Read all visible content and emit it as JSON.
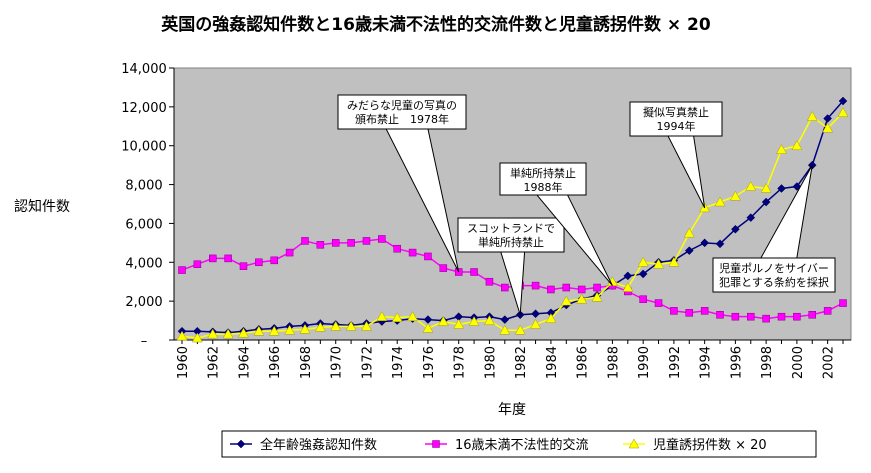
{
  "chart_data": {
    "type": "line",
    "title": "英国の強姦認知件数と16歳未満不法性的交流件数と児童誘拐件数 × 20",
    "xlabel": "年度",
    "ylabel": "認知件数",
    "ylim": [
      0,
      14000
    ],
    "yticks": [
      "–",
      "2,000",
      "4,000",
      "6,000",
      "8,000",
      "10,000",
      "12,000",
      "14,000"
    ],
    "ytick_values": [
      0,
      2000,
      4000,
      6000,
      8000,
      10000,
      12000,
      14000
    ],
    "xticks": [
      1960,
      1962,
      1964,
      1966,
      1968,
      1970,
      1972,
      1974,
      1976,
      1978,
      1980,
      1982,
      1984,
      1986,
      1988,
      1990,
      1992,
      1994,
      1996,
      1998,
      2000,
      2002
    ],
    "x": [
      1960,
      1961,
      1962,
      1963,
      1964,
      1965,
      1966,
      1967,
      1968,
      1969,
      1970,
      1971,
      1972,
      1973,
      1974,
      1975,
      1976,
      1977,
      1978,
      1979,
      1980,
      1981,
      1982,
      1983,
      1984,
      1985,
      1986,
      1987,
      1988,
      1989,
      1990,
      1991,
      1992,
      1993,
      1994,
      1995,
      1996,
      1997,
      1998,
      1999,
      2000,
      2001,
      2002,
      2003
    ],
    "grid": false,
    "legend_position": "bottom",
    "series": [
      {
        "name": "全年齢強姦認知件数",
        "color": "#000080",
        "marker": "diamond",
        "values": [
          450,
          450,
          420,
          380,
          450,
          550,
          600,
          700,
          750,
          850,
          800,
          750,
          850,
          950,
          1000,
          1100,
          1050,
          1000,
          1200,
          1150,
          1200,
          1050,
          1300,
          1350,
          1400,
          1800,
          2100,
          2300,
          2800,
          3300,
          3400,
          4000,
          4100,
          4600,
          5000,
          4950,
          5700,
          6300,
          7100,
          7800,
          7900,
          9000,
          11400,
          12300
        ]
      },
      {
        "name": "16歳未満不法性的交流",
        "color": "#ff00ff",
        "marker": "square",
        "values": [
          3600,
          3900,
          4200,
          4200,
          3800,
          4000,
          4100,
          4500,
          5100,
          4900,
          5000,
          5000,
          5100,
          5200,
          4700,
          4500,
          4300,
          3700,
          3500,
          3500,
          3000,
          2700,
          2800,
          2800,
          2600,
          2700,
          2600,
          2700,
          2800,
          2500,
          2100,
          1900,
          1500,
          1400,
          1500,
          1300,
          1200,
          1200,
          1100,
          1200,
          1200,
          1300,
          1500,
          1900
        ]
      },
      {
        "name": "児童誘拐件数 × 20",
        "color": "#ffff00",
        "marker": "triangle",
        "values": [
          200,
          100,
          300,
          300,
          350,
          450,
          450,
          500,
          550,
          650,
          700,
          700,
          700,
          1200,
          1150,
          1200,
          600,
          950,
          800,
          950,
          1000,
          500,
          500,
          800,
          1100,
          2000,
          2100,
          2200,
          3000,
          2700,
          4000,
          3900,
          4000,
          5500,
          6800,
          7100,
          7400,
          7900,
          7800,
          9800,
          10000,
          11500,
          10900,
          11700
        ]
      }
    ],
    "annotations": [
      {
        "text": [
          "みだらな児童の写真の",
          "頒布禁止　1978年"
        ],
        "x": 1978,
        "y": 3500
      },
      {
        "text": [
          "スコットランドで",
          "単純所持禁止"
        ],
        "x": 1982,
        "y": 1300
      },
      {
        "text": [
          "単純所持禁止",
          "1988年"
        ],
        "x": 1988,
        "y": 2800
      },
      {
        "text": [
          "擬似写真禁止",
          "1994年"
        ],
        "x": 1994,
        "y": 6800
      },
      {
        "text": [
          "児童ポルノをサイバー",
          "犯罪とする条約を採択"
        ],
        "x": 2001,
        "y": 9000
      }
    ]
  }
}
